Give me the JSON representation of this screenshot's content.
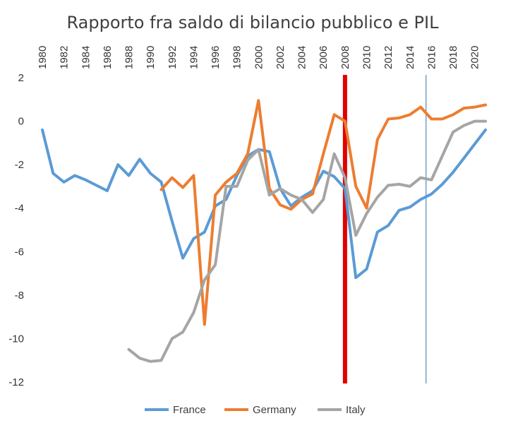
{
  "chart_data": {
    "type": "line",
    "title": "Rapporto fra saldo di bilancio pubblico e PIL",
    "xlabel": "",
    "ylabel": "",
    "xlim": [
      1980,
      2021
    ],
    "ylim": [
      -12,
      2
    ],
    "x_ticks": [
      "1980",
      "1982",
      "1984",
      "1986",
      "1988",
      "1990",
      "1992",
      "1994",
      "1996",
      "1998",
      "2000",
      "2002",
      "2004",
      "2006",
      "2008",
      "2010",
      "2012",
      "2014",
      "2016",
      "2018",
      "2020"
    ],
    "y_ticks": [
      "2",
      "0",
      "-2",
      "-4",
      "-6",
      "-8",
      "-10",
      "-12"
    ],
    "grid": false,
    "legend_position": "bottom",
    "reference_lines": [
      {
        "x": 2008,
        "color": "#e00000"
      },
      {
        "x": 2015.5,
        "color": "#2e75b6"
      }
    ],
    "series": [
      {
        "name": "France",
        "color": "#5b9bd5",
        "x": [
          1980,
          1981,
          1982,
          1983,
          1984,
          1985,
          1986,
          1987,
          1988,
          1989,
          1990,
          1991,
          1992,
          1993,
          1994,
          1995,
          1996,
          1997,
          1998,
          1999,
          2000,
          2001,
          2002,
          2003,
          2004,
          2005,
          2006,
          2007,
          2008,
          2009,
          2010,
          2011,
          2012,
          2013,
          2014,
          2015,
          2016,
          2017,
          2018,
          2019,
          2020,
          2021
        ],
        "y": [
          -0.4,
          -2.4,
          -2.8,
          -2.5,
          -2.7,
          -2.95,
          -3.2,
          -2.0,
          -2.5,
          -1.75,
          -2.4,
          -2.8,
          -4.6,
          -6.3,
          -5.4,
          -5.1,
          -3.9,
          -3.6,
          -2.5,
          -1.6,
          -1.3,
          -1.4,
          -3.1,
          -3.9,
          -3.5,
          -3.2,
          -2.3,
          -2.55,
          -3.1,
          -7.2,
          -6.8,
          -5.1,
          -4.8,
          -4.1,
          -3.95,
          -3.6,
          -3.35,
          -2.9,
          -2.35,
          -1.7,
          -1.05,
          -0.4
        ]
      },
      {
        "name": "Germany",
        "color": "#ed7d31",
        "x": [
          1991,
          1992,
          1993,
          1994,
          1995,
          1996,
          1997,
          1998,
          1999,
          2000,
          2001,
          2002,
          2003,
          2004,
          2005,
          2006,
          2007,
          2008,
          2009,
          2010,
          2011,
          2012,
          2013,
          2014,
          2015,
          2016,
          2017,
          2018,
          2019,
          2020,
          2021
        ],
        "y": [
          -3.15,
          -2.6,
          -3.05,
          -2.5,
          -9.35,
          -3.4,
          -2.8,
          -2.4,
          -1.5,
          0.95,
          -3.1,
          -3.85,
          -4.05,
          -3.6,
          -3.35,
          -1.5,
          0.3,
          0.0,
          -3.0,
          -4.0,
          -0.85,
          0.1,
          0.15,
          0.3,
          0.65,
          0.1,
          0.1,
          0.3,
          0.6,
          0.65,
          0.75
        ]
      },
      {
        "name": "Italy",
        "color": "#a5a5a5",
        "x": [
          1988,
          1989,
          1990,
          1991,
          1992,
          1993,
          1994,
          1995,
          1996,
          1997,
          1998,
          1999,
          2000,
          2001,
          2002,
          2003,
          2004,
          2005,
          2006,
          2007,
          2008,
          2009,
          2010,
          2011,
          2012,
          2013,
          2014,
          2015,
          2016,
          2017,
          2018,
          2019,
          2020,
          2021
        ],
        "y": [
          -10.5,
          -10.9,
          -11.05,
          -11.0,
          -10.0,
          -9.7,
          -8.8,
          -7.3,
          -6.6,
          -3.0,
          -3.0,
          -1.8,
          -1.3,
          -3.4,
          -3.1,
          -3.4,
          -3.6,
          -4.2,
          -3.6,
          -1.5,
          -2.6,
          -5.25,
          -4.25,
          -3.5,
          -2.95,
          -2.9,
          -3.0,
          -2.6,
          -2.7,
          -1.6,
          -0.5,
          -0.2,
          0.0,
          0.0
        ]
      }
    ]
  }
}
